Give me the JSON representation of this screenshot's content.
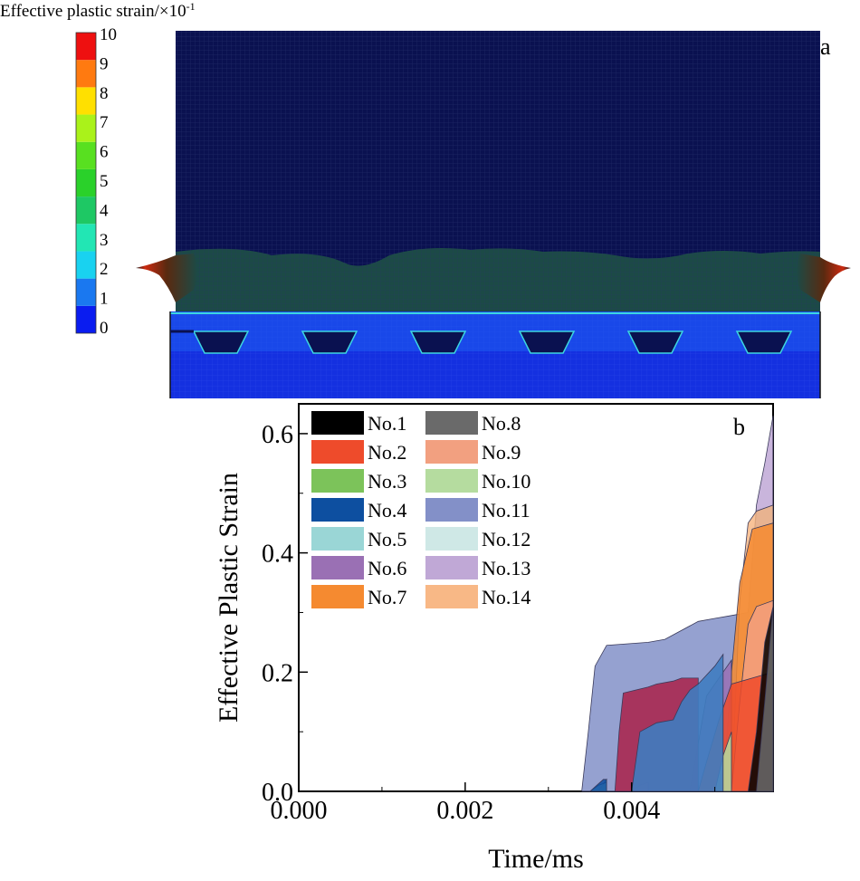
{
  "panel_a": {
    "title": "Effective plastic strain/×10",
    "title_exponent": "-1",
    "panel_label": "a",
    "colorbar": {
      "ticks": [
        "0",
        "1",
        "2",
        "3",
        "4",
        "5",
        "6",
        "7",
        "8",
        "9",
        "10"
      ],
      "colors": [
        "#0a1cf0",
        "#1a78f0",
        "#19d2f0",
        "#22e6b4",
        "#1ec864",
        "#2ad12a",
        "#58e020",
        "#aaf21a",
        "#ffe000",
        "#ff7a10",
        "#ee1010"
      ]
    },
    "colors": {
      "background_mesh": "#0a1150",
      "deformed_zone": "#1c4a46",
      "base_plate": "#1430e0"
    }
  },
  "chart_data": {
    "type": "area",
    "panel_label": "b",
    "xlabel": "Time/ms",
    "ylabel": "Effective Plastic Strain",
    "xlim": [
      0.0,
      0.0057
    ],
    "ylim": [
      0.0,
      0.65
    ],
    "xticks": [
      0.0,
      0.002,
      0.004
    ],
    "xtick_labels": [
      "0.000",
      "0.002",
      "0.004"
    ],
    "yticks": [
      0.0,
      0.2,
      0.4,
      0.6
    ],
    "ytick_labels": [
      "0.0",
      "0.2",
      "0.4",
      "0.6"
    ],
    "legend_position": "top-left",
    "series": [
      {
        "name": "No.1",
        "color": "#000000",
        "x": [
          0.0054,
          0.0055,
          0.0056,
          0.0057
        ],
        "y": [
          0.0,
          0.1,
          0.25,
          0.31
        ]
      },
      {
        "name": "No.2",
        "color": "#ee4b2b",
        "x": [
          0.0048,
          0.0049,
          0.00505,
          0.0052,
          0.0057
        ],
        "y": [
          0.0,
          0.05,
          0.12,
          0.18,
          0.2
        ]
      },
      {
        "name": "No.3",
        "color": "#7cc35a",
        "x": [
          0.0036,
          0.00365,
          0.0037
        ],
        "y": [
          0.0,
          0.01,
          0.02
        ]
      },
      {
        "name": "No.4",
        "color": "#0d4fa0",
        "x": [
          0.0035,
          0.00358,
          0.00366,
          0.0037
        ],
        "y": [
          0.0,
          0.01,
          0.02,
          0.02
        ]
      },
      {
        "name": "No.5",
        "color": "#9ad6d6",
        "x": [
          0.0035,
          0.0036,
          0.0037
        ],
        "y": [
          0.0,
          0.01,
          0.015
        ]
      },
      {
        "name": "No.6",
        "color": "#9a70b4",
        "x": [
          0.0047,
          0.0048,
          0.0049,
          0.0051,
          0.0052
        ],
        "y": [
          0.0,
          0.08,
          0.16,
          0.2,
          0.22
        ]
      },
      {
        "name": "No.7",
        "color": "#f58a30",
        "x": [
          0.0051,
          0.0052,
          0.0053,
          0.00545,
          0.0057
        ],
        "y": [
          0.0,
          0.2,
          0.35,
          0.44,
          0.45
        ]
      },
      {
        "name": "No.8",
        "color": "#6a6a6a",
        "x": [
          0.0055,
          0.0056,
          0.0057
        ],
        "y": [
          0.0,
          0.15,
          0.31
        ]
      },
      {
        "name": "No.9",
        "color": "#f2a080",
        "x": [
          0.0052,
          0.0053,
          0.0054,
          0.0055,
          0.0057
        ],
        "y": [
          0.0,
          0.15,
          0.28,
          0.31,
          0.32
        ]
      },
      {
        "name": "No.10",
        "color": "#b5dc9f",
        "x": [
          0.005,
          0.0051,
          0.0052
        ],
        "y": [
          0.0,
          0.06,
          0.1
        ]
      },
      {
        "name": "No.11",
        "color": "#8390c8",
        "x": [
          0.0034,
          0.00348,
          0.00356,
          0.0037,
          0.0042,
          0.0044,
          0.0048,
          0.005,
          0.0052,
          0.0054,
          0.0055,
          0.0057
        ],
        "y": [
          0.0,
          0.1,
          0.21,
          0.245,
          0.25,
          0.255,
          0.285,
          0.29,
          0.295,
          0.3,
          0.47,
          0.48
        ]
      },
      {
        "name": "No.12",
        "color": "#cfe8e6",
        "x": [
          0.004,
          0.0041,
          0.0042
        ],
        "y": [
          0.0,
          0.01,
          0.015
        ]
      },
      {
        "name": "No.13",
        "color": "#c0a8d6",
        "x": [
          0.0052,
          0.0054,
          0.0055,
          0.0056,
          0.0057
        ],
        "y": [
          0.0,
          0.3,
          0.48,
          0.55,
          0.63
        ]
      },
      {
        "name": "No.14",
        "color": "#f8b886",
        "x": [
          0.0052,
          0.0053,
          0.0054,
          0.0055,
          0.0057
        ],
        "y": [
          0.0,
          0.32,
          0.45,
          0.47,
          0.48
        ]
      }
    ],
    "overlay_series": [
      {
        "name": "No.2",
        "fill": "#a82850",
        "x": [
          0.0038,
          0.00385,
          0.0039,
          0.0042,
          0.0043,
          0.0045,
          0.0046,
          0.0048
        ],
        "y": [
          0.0,
          0.1,
          0.165,
          0.175,
          0.18,
          0.185,
          0.19,
          0.19
        ]
      },
      {
        "name": "No.4",
        "fill": "#3f7cc0",
        "x": [
          0.004,
          0.00405,
          0.0041,
          0.0043,
          0.0045,
          0.0046,
          0.0047,
          0.0048,
          0.005,
          0.0051
        ],
        "y": [
          0.0,
          0.05,
          0.1,
          0.115,
          0.12,
          0.15,
          0.17,
          0.18,
          0.21,
          0.23
        ]
      }
    ]
  }
}
